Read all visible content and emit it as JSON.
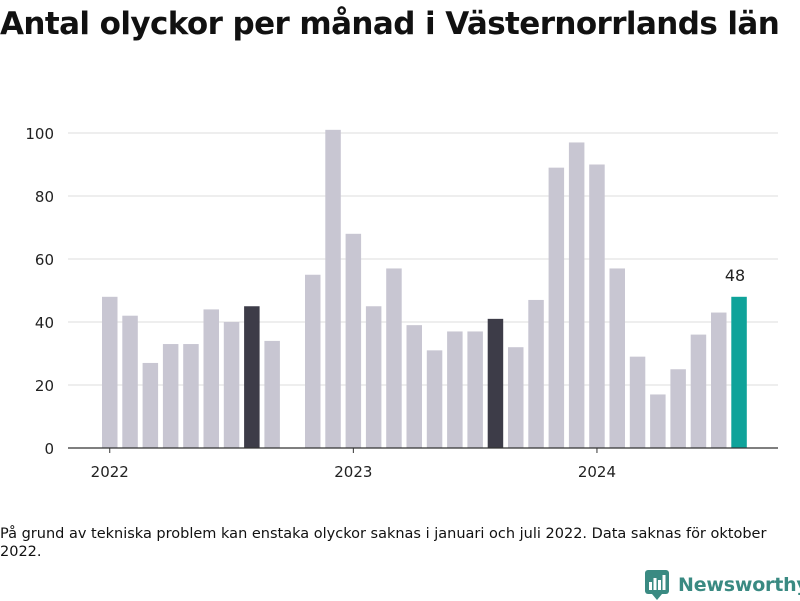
{
  "title": "Antal olyckor per månad i Västernorrlands län",
  "footnote": "På grund av tekniska problem kan enstaka olyckor saknas i januari och juli 2022. Data saknas för oktober 2022.",
  "brand": {
    "name": "Newsworthy",
    "icon": "newsworthy-logo-icon"
  },
  "colors": {
    "default": "#c8c6d2",
    "highlight": "#3d3c48",
    "current": "#0fa39a",
    "grid": "#dedede",
    "axis": "#333333"
  },
  "chart_data": {
    "type": "bar",
    "title": "Antal olyckor per månad i Västernorrlands län",
    "xlabel": "",
    "ylabel": "",
    "ylim": [
      0,
      100
    ],
    "y_ticks": [
      0,
      20,
      40,
      60,
      80,
      100
    ],
    "x_tick_labels": [
      {
        "label": "2022",
        "at": "2022-01"
      },
      {
        "label": "2023",
        "at": "2023-01"
      },
      {
        "label": "2024",
        "at": "2024-01"
      }
    ],
    "categories": [
      "2022-01",
      "2022-02",
      "2022-03",
      "2022-04",
      "2022-05",
      "2022-06",
      "2022-07",
      "2022-08",
      "2022-09",
      "2022-10",
      "2022-11",
      "2022-12",
      "2023-01",
      "2023-02",
      "2023-03",
      "2023-04",
      "2023-05",
      "2023-06",
      "2023-07",
      "2023-08",
      "2023-09",
      "2023-10",
      "2023-11",
      "2023-12",
      "2024-01",
      "2024-02",
      "2024-03",
      "2024-04",
      "2024-05",
      "2024-06",
      "2024-07",
      "2024-08"
    ],
    "values": [
      48,
      42,
      27,
      33,
      33,
      44,
      40,
      45,
      34,
      null,
      55,
      101,
      68,
      45,
      57,
      39,
      31,
      37,
      37,
      41,
      32,
      47,
      89,
      97,
      90,
      57,
      29,
      17,
      25,
      36,
      43,
      48
    ],
    "highlighted": [
      "2022-08",
      "2023-08"
    ],
    "current": "2024-08",
    "data_labels": [
      {
        "at": "2024-08",
        "text": "48"
      }
    ],
    "grid": true
  }
}
